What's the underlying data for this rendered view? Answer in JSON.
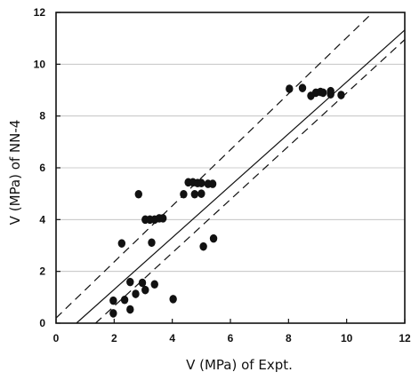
{
  "chart_data": {
    "type": "scatter",
    "title": "",
    "xlabel": "V (MPa) of Expt.",
    "ylabel": "V (MPa) of NN-4",
    "xlim": [
      0,
      12
    ],
    "ylim": [
      0,
      12
    ],
    "x_ticks": [
      0,
      2,
      4,
      6,
      8,
      10,
      12
    ],
    "y_ticks": [
      0,
      2,
      4,
      6,
      8,
      10,
      12
    ],
    "x_tick_labels": [
      "0",
      "2",
      "4",
      "6",
      "8",
      "10",
      "12"
    ],
    "y_tick_labels": [
      "0",
      "2",
      "4",
      "6",
      "8",
      "10",
      "12"
    ],
    "grid": "horizontal",
    "legend": "none",
    "colors": {
      "points": "#111111",
      "lines": "#111111",
      "grid": "#bbbbbb"
    },
    "series": [
      {
        "values": [
          {
            "x": 1.97,
            "y": 0.38
          },
          {
            "x": 1.97,
            "y": 0.87
          },
          {
            "x": 2.36,
            "y": 0.9
          },
          {
            "x": 2.55,
            "y": 0.53
          },
          {
            "x": 2.55,
            "y": 1.59
          },
          {
            "x": 2.74,
            "y": 1.13
          },
          {
            "x": 2.97,
            "y": 1.56
          },
          {
            "x": 3.07,
            "y": 1.28
          },
          {
            "x": 3.39,
            "y": 1.5
          },
          {
            "x": 4.03,
            "y": 0.93
          },
          {
            "x": 2.26,
            "y": 3.08
          },
          {
            "x": 2.84,
            "y": 4.98
          },
          {
            "x": 3.07,
            "y": 4.0
          },
          {
            "x": 3.23,
            "y": 4.0
          },
          {
            "x": 3.29,
            "y": 3.11
          },
          {
            "x": 3.39,
            "y": 4.0
          },
          {
            "x": 3.55,
            "y": 4.05
          },
          {
            "x": 3.68,
            "y": 4.05
          },
          {
            "x": 4.39,
            "y": 4.98
          },
          {
            "x": 4.55,
            "y": 5.44
          },
          {
            "x": 4.71,
            "y": 5.44
          },
          {
            "x": 4.77,
            "y": 4.98
          },
          {
            "x": 4.87,
            "y": 5.41
          },
          {
            "x": 5.0,
            "y": 5.0
          },
          {
            "x": 5.0,
            "y": 5.41
          },
          {
            "x": 5.07,
            "y": 2.96
          },
          {
            "x": 5.23,
            "y": 5.38
          },
          {
            "x": 5.39,
            "y": 5.38
          },
          {
            "x": 5.42,
            "y": 3.27
          },
          {
            "x": 8.03,
            "y": 9.05
          },
          {
            "x": 8.48,
            "y": 9.08
          },
          {
            "x": 8.77,
            "y": 8.78
          },
          {
            "x": 8.94,
            "y": 8.9
          },
          {
            "x": 9.1,
            "y": 8.93
          },
          {
            "x": 9.19,
            "y": 8.9
          },
          {
            "x": 9.45,
            "y": 8.84
          },
          {
            "x": 9.45,
            "y": 8.96
          },
          {
            "x": 9.81,
            "y": 8.81
          }
        ]
      }
    ],
    "lines": [
      {
        "style": "solid",
        "x": [
          0.7,
          12.0
        ],
        "y": [
          0.0,
          11.32
        ]
      },
      {
        "style": "dashed",
        "x": [
          0.0,
          10.9
        ],
        "y": [
          0.2,
          12.0
        ]
      },
      {
        "style": "dashed",
        "x": [
          1.36,
          12.0
        ],
        "y": [
          0.0,
          10.95
        ]
      }
    ]
  }
}
